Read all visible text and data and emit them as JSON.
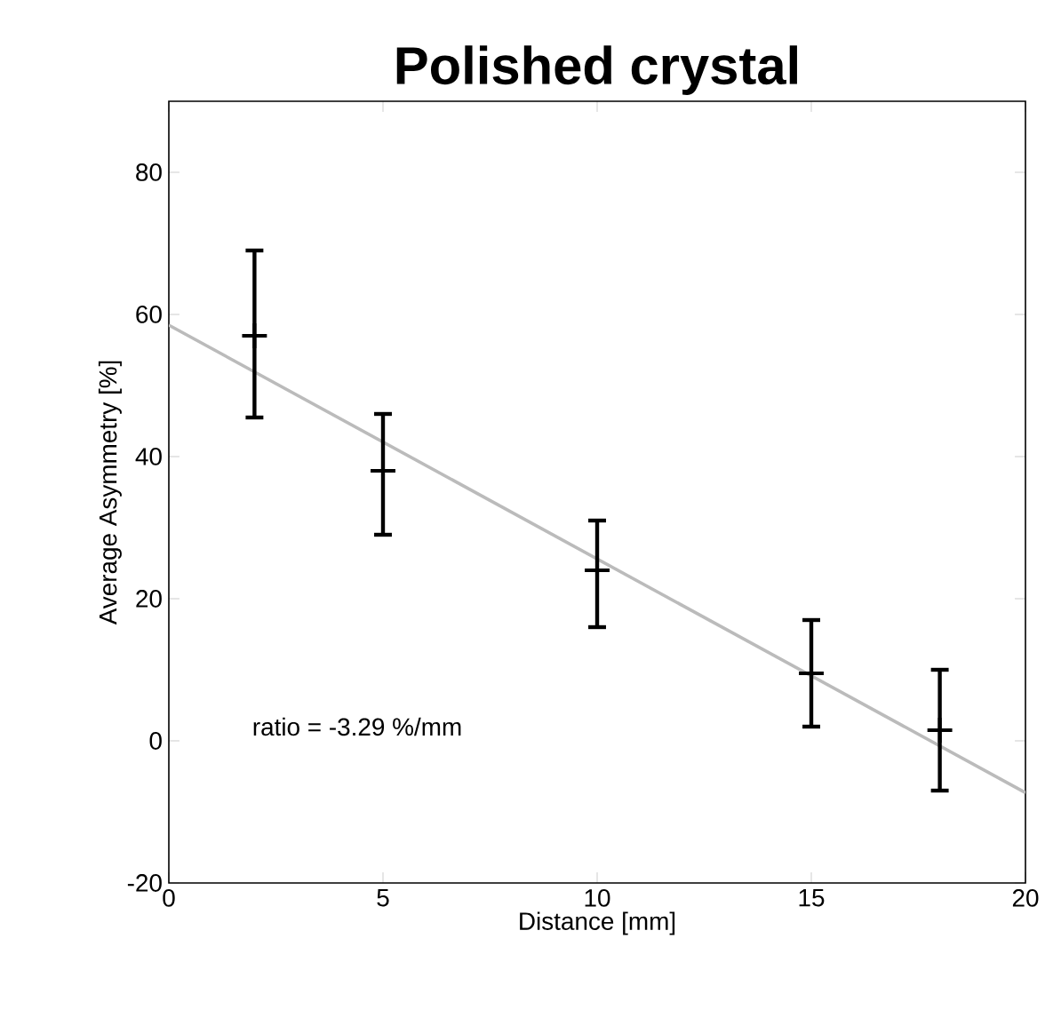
{
  "chart_data": {
    "type": "scatter",
    "title": "Polished crystal",
    "xlabel": "Distance [mm]",
    "ylabel": "Average Asymmetry [%]",
    "xlim": [
      0,
      20
    ],
    "ylim": [
      -20,
      90
    ],
    "xticks": [
      0,
      5,
      10,
      15,
      20
    ],
    "yticks": [
      -20,
      0,
      20,
      40,
      60,
      80
    ],
    "series": [
      {
        "color": "#000000",
        "marker": "cross",
        "x": [
          2,
          5,
          10,
          15,
          18
        ],
        "values": [
          57,
          38,
          24,
          9.5,
          1.5
        ],
        "errors": [
          [
            45.5,
            69
          ],
          [
            29,
            46
          ],
          [
            16,
            31
          ],
          [
            2,
            17
          ],
          [
            -7,
            10
          ]
        ]
      },
      {
        "type": "line",
        "color": "#bbbbbb",
        "marker": "none",
        "x": [
          0,
          20
        ],
        "values": [
          58.5,
          -7.3
        ]
      }
    ],
    "annotations": [
      "ratio = -3.29 %/mm"
    ]
  }
}
